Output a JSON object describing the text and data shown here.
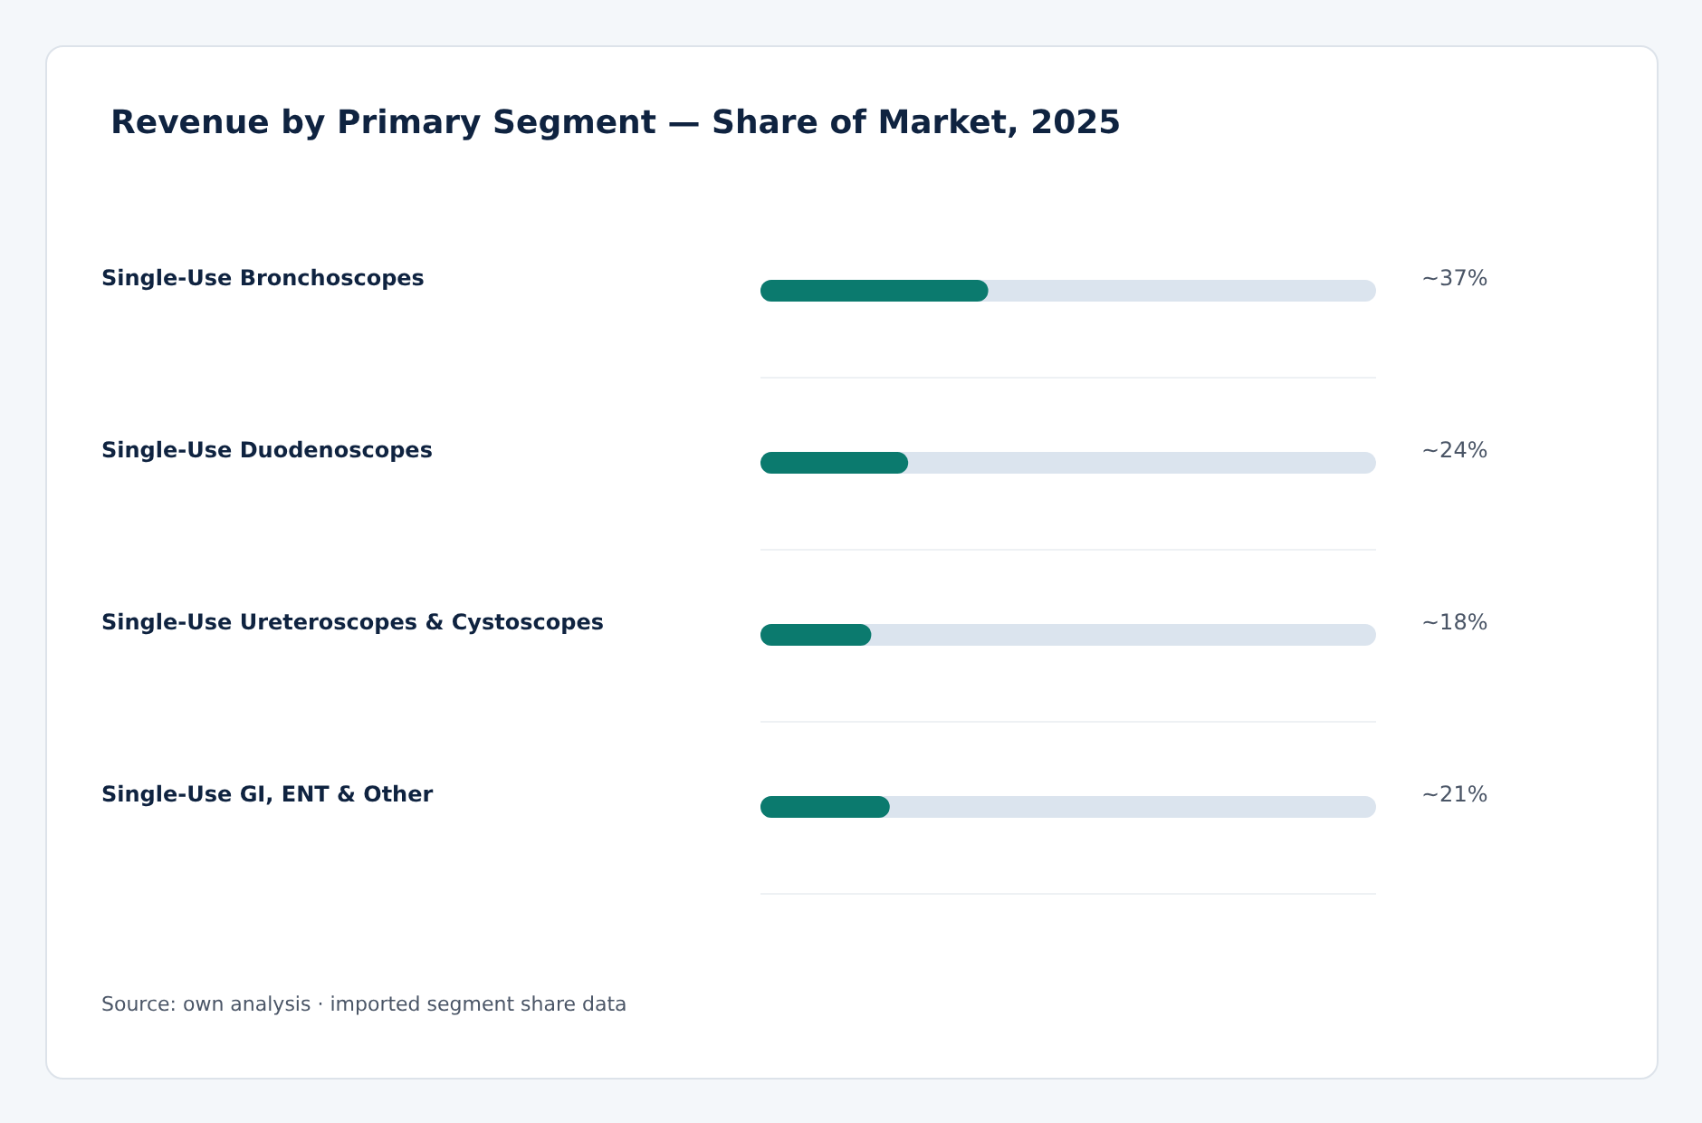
{
  "chart_data": {
    "type": "bar",
    "orientation": "horizontal",
    "title": "Revenue by Primary Segment — Share of Market, 2025",
    "categories": [
      "Single-Use Bronchoscopes",
      "Single-Use Duodenoscopes",
      "Single-Use Ureteroscopes & Cystoscopes",
      "Single-Use GI, ENT & Other"
    ],
    "values": [
      37,
      24,
      18,
      21
    ],
    "value_labels": [
      "~37%",
      "~24%",
      "~18%",
      "~21%"
    ],
    "color": "#0b7a6e",
    "xlim": [
      0,
      100
    ],
    "tick_labels": "y",
    "grid": "y",
    "annotations": [
      "Source: own analysis · imported segment share data"
    ]
  }
}
